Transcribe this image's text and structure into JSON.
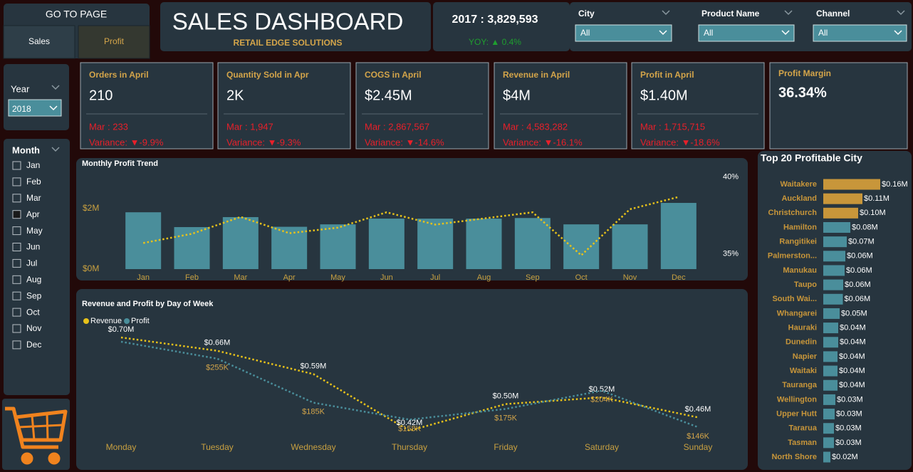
{
  "navigation": {
    "title": "GO TO PAGE",
    "tabs": [
      "Sales",
      "Profit"
    ]
  },
  "header": {
    "title": "SALES DASHBOARD",
    "subtitle": "RETAIL EDGE SOLUTIONS"
  },
  "yearly_total": {
    "label": "2017 : 3,829,593",
    "yoy": "YOY: ▲ 0.4%"
  },
  "filters": [
    {
      "label": "City",
      "value": "All"
    },
    {
      "label": "Product Name",
      "value": "All"
    },
    {
      "label": "Channel",
      "value": "All"
    }
  ],
  "year_slicer": {
    "label": "Year",
    "value": "2018"
  },
  "month_slicer": {
    "label": "Month",
    "options": [
      "Jan",
      "Feb",
      "Mar",
      "Apr",
      "May",
      "Jun",
      "Jul",
      "Aug",
      "Sep",
      "Oct",
      "Nov",
      "Dec"
    ],
    "selected": "Apr"
  },
  "kpis": [
    {
      "title": "Orders in April",
      "value": "210",
      "previous": "Mar : 233",
      "variance": "Variance: ▼-9.9%"
    },
    {
      "title": "Quantity Sold in Apr",
      "value": "2K",
      "previous": "Mar : 1,947",
      "variance": "Variance: ▼-9.3%"
    },
    {
      "title": "COGS in April",
      "value": "$2.45M",
      "previous": "Mar : 2,867,567",
      "variance": "Variance: ▼-14.6%"
    },
    {
      "title": "Revenue in April",
      "value": "$4M",
      "previous": "Mar : 4,583,282",
      "variance": "Variance: ▼-16.1%"
    },
    {
      "title": "Profit in April",
      "value": "$1.40M",
      "previous": "Mar : 1,715,715",
      "variance": "Variance: ▼-18.6%"
    }
  ],
  "profit_margin": {
    "title": "Profit Margin",
    "value": "36.34%"
  },
  "chart_data": [
    {
      "type": "bar",
      "title": "Monthly Profit Trend",
      "categories": [
        "Jan",
        "Feb",
        "Mar",
        "Apr",
        "May",
        "Jun",
        "Jul",
        "Aug",
        "Sep",
        "Oct",
        "Nov",
        "Dec"
      ],
      "series": [
        {
          "color": "#4a8e9b",
          "values": [
            1880000,
            1390000,
            1720000,
            1400000,
            1480000,
            1670000,
            1670000,
            1670000,
            1690000,
            1480000,
            1480000,
            2190000
          ]
        },
        {
          "type": "line",
          "axis": "y2",
          "color": "#e8c21a",
          "values": [
            35.7,
            36.3,
            37.4,
            36.34,
            36.7,
            37.7,
            36.9,
            37.3,
            37.7,
            34.9,
            37.9,
            38.7
          ]
        }
      ],
      "ylim": [
        0,
        3250000
      ],
      "yticks": [
        {
          "value": 0,
          "label": "$0M"
        },
        {
          "value": 2000000,
          "label": "$2M"
        }
      ],
      "y2lim": [
        34,
        40.4
      ],
      "y2ticks": [
        {
          "value": 35,
          "label": "35%"
        },
        {
          "value": 40,
          "label": "40%"
        }
      ]
    },
    {
      "type": "line",
      "title": "Revenue and Profit by Day of Week",
      "categories": [
        "Monday",
        "Tuesday",
        "Wednesday",
        "Thursday",
        "Friday",
        "Saturday",
        "Sunday"
      ],
      "series": [
        {
          "name": "Revenue",
          "color": "#e8c21a",
          "values": [
            700000,
            660000,
            590000,
            420000,
            500000,
            520000,
            460000
          ],
          "value_labels": [
            "$0.70M",
            "$0.66M",
            "$0.59M",
            "$0.42M",
            "$0.50M",
            "$0.52M",
            "$0.46M"
          ]
        },
        {
          "name": "Profit",
          "color": "#4a8e9b",
          "values": [
            282000,
            255000,
            185000,
            158000,
            175000,
            204000,
            146000
          ],
          "value_labels": [
            null,
            "$255K",
            "$185K",
            "$158K",
            "$175K",
            "$204K",
            "$146K"
          ]
        }
      ]
    },
    {
      "type": "hbar",
      "title": "Top 20 Profitable City",
      "categories": [
        "Waitakere",
        "Auckland",
        "Christchurch",
        "Hamilton",
        "Rangitikei",
        "Palmerston...",
        "Manukau",
        "Taupo",
        "South Wai...",
        "Whangarei",
        "Hauraki",
        "Dunedin",
        "Napier",
        "Waitaki",
        "Tauranga",
        "Wellington",
        "Upper Hutt",
        "Tararua",
        "Tasman",
        "North Shore"
      ],
      "values": [
        160000,
        110000,
        98000,
        76000,
        66000,
        62000,
        60000,
        56000,
        55000,
        46000,
        42000,
        42000,
        40000,
        40000,
        40000,
        34000,
        32000,
        30000,
        30000,
        20000
      ],
      "value_labels": [
        "$0.16M",
        "$0.11M",
        "$0.10M",
        "$0.08M",
        "$0.07M",
        "$0.06M",
        "$0.06M",
        "$0.06M",
        "$0.06M",
        "$0.05M",
        "$0.04M",
        "$0.04M",
        "$0.04M",
        "$0.04M",
        "$0.04M",
        "$0.03M",
        "$0.03M",
        "$0.03M",
        "$0.03M",
        "$0.02M"
      ],
      "colors": [
        "#c8963a",
        "#c8963a",
        "#c8963a",
        "#4a8e9b",
        "#4a8e9b",
        "#4a8e9b",
        "#4a8e9b",
        "#4a8e9b",
        "#4a8e9b",
        "#4a8e9b",
        "#4a8e9b",
        "#4a8e9b",
        "#4a8e9b",
        "#4a8e9b",
        "#4a8e9b",
        "#4a8e9b",
        "#4a8e9b",
        "#4a8e9b",
        "#4a8e9b",
        "#4a8e9b"
      ]
    }
  ]
}
